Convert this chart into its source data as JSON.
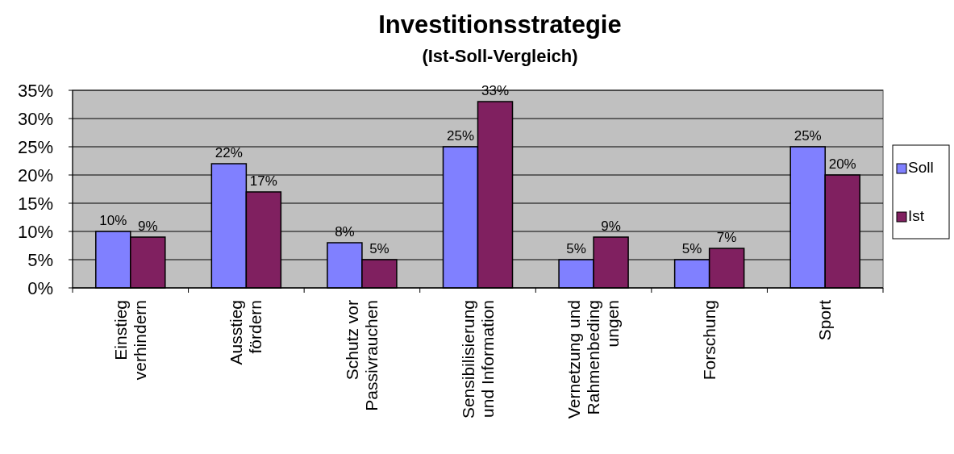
{
  "chart_data": {
    "type": "bar",
    "title": "Investitionsstrategie",
    "subtitle": "(Ist-Soll-Vergleich)",
    "categories": [
      "Einstieg\nverhindern",
      "Ausstieg\nfördern",
      "Schutz vor\nPassivrauchen",
      "Sensibilisierung\nund Information",
      "Vernetzung und\nRahmenbeding\nungen",
      "Forschung",
      "Sport"
    ],
    "series": [
      {
        "name": "Soll",
        "color": "#8080ff",
        "values": [
          10,
          22,
          8,
          25,
          5,
          5,
          25
        ],
        "value_labels": [
          "10%",
          "22%",
          "8%",
          "25%",
          "5%",
          "5%",
          "25%"
        ]
      },
      {
        "name": "Ist",
        "color": "#802060",
        "values": [
          9,
          17,
          5,
          33,
          9,
          7,
          20
        ],
        "value_labels": [
          "9%",
          "17%",
          "5%",
          "33%",
          "9%",
          "7%",
          "20%"
        ]
      }
    ],
    "ylim": [
      0,
      35
    ],
    "yticks": [
      {
        "value": 0,
        "label": "0%"
      },
      {
        "value": 5,
        "label": "5%"
      },
      {
        "value": 10,
        "label": "10%"
      },
      {
        "value": 15,
        "label": "15%"
      },
      {
        "value": 20,
        "label": "20%"
      },
      {
        "value": 25,
        "label": "25%"
      },
      {
        "value": 30,
        "label": "30%"
      },
      {
        "value": 35,
        "label": "35%"
      }
    ],
    "grid": "y",
    "legend": "right"
  }
}
